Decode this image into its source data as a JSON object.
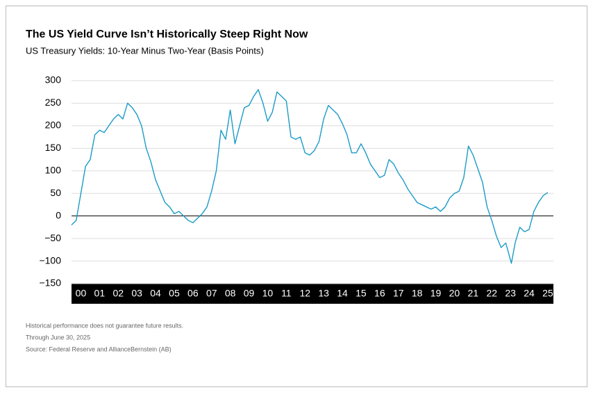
{
  "chart_data": {
    "type": "line",
    "title": "The US Yield Curve Isn’t Historically Steep Right Now",
    "subtitle": "US Treasury Yields: 10-Year Minus Two-Year (Basis Points)",
    "notes": [
      "Historical performance does not guarantee future results.",
      "Through June 30, 2025",
      "Source: Federal Reserve and AllianceBernstein (AB)"
    ],
    "xlim": [
      2000,
      2025.8
    ],
    "xticks": [
      {
        "value": 2000.5,
        "label": "00"
      },
      {
        "value": 2001.5,
        "label": "01"
      },
      {
        "value": 2002.5,
        "label": "02"
      },
      {
        "value": 2003.5,
        "label": "03"
      },
      {
        "value": 2004.5,
        "label": "04"
      },
      {
        "value": 2005.5,
        "label": "05"
      },
      {
        "value": 2006.5,
        "label": "06"
      },
      {
        "value": 2007.5,
        "label": "07"
      },
      {
        "value": 2008.5,
        "label": "08"
      },
      {
        "value": 2009.5,
        "label": "09"
      },
      {
        "value": 2010.5,
        "label": "10"
      },
      {
        "value": 2011.5,
        "label": "11"
      },
      {
        "value": 2012.5,
        "label": "12"
      },
      {
        "value": 2013.5,
        "label": "13"
      },
      {
        "value": 2014.5,
        "label": "14"
      },
      {
        "value": 2015.5,
        "label": "15"
      },
      {
        "value": 2016.5,
        "label": "16"
      },
      {
        "value": 2017.5,
        "label": "17"
      },
      {
        "value": 2018.5,
        "label": "18"
      },
      {
        "value": 2019.5,
        "label": "19"
      },
      {
        "value": 2020.5,
        "label": "20"
      },
      {
        "value": 2021.5,
        "label": "21"
      },
      {
        "value": 2022.5,
        "label": "22"
      },
      {
        "value": 2023.5,
        "label": "23"
      },
      {
        "value": 2024.5,
        "label": "24"
      },
      {
        "value": 2025.5,
        "label": "25"
      }
    ],
    "ylim": [
      -150,
      300
    ],
    "yticks": [
      {
        "value": -150,
        "label": "−150"
      },
      {
        "value": -100,
        "label": "−100"
      },
      {
        "value": -50,
        "label": "−50"
      },
      0,
      50,
      100,
      150,
      200,
      250,
      300
    ],
    "grid": true,
    "series": [
      {
        "color": "#1a9bc7",
        "x": [
          2000,
          2000.25,
          2000.5,
          2000.75,
          2001,
          2001.25,
          2001.5,
          2001.75,
          2002,
          2002.25,
          2002.5,
          2002.75,
          2003,
          2003.25,
          2003.5,
          2003.75,
          2004,
          2004.25,
          2004.5,
          2004.75,
          2005,
          2005.25,
          2005.5,
          2005.75,
          2006,
          2006.25,
          2006.5,
          2006.75,
          2007,
          2007.25,
          2007.5,
          2007.75,
          2008,
          2008.25,
          2008.5,
          2008.75,
          2009,
          2009.25,
          2009.5,
          2009.75,
          2010,
          2010.25,
          2010.5,
          2010.75,
          2011,
          2011.25,
          2011.5,
          2011.75,
          2012,
          2012.25,
          2012.5,
          2012.75,
          2013,
          2013.25,
          2013.5,
          2013.75,
          2014,
          2014.25,
          2014.5,
          2014.75,
          2015,
          2015.25,
          2015.5,
          2015.75,
          2016,
          2016.25,
          2016.5,
          2016.75,
          2017,
          2017.25,
          2017.5,
          2017.75,
          2018,
          2018.25,
          2018.5,
          2018.75,
          2019,
          2019.25,
          2019.5,
          2019.75,
          2020,
          2020.25,
          2020.5,
          2020.75,
          2021,
          2021.25,
          2021.5,
          2021.75,
          2022,
          2022.25,
          2022.5,
          2022.75,
          2023,
          2023.25,
          2023.55,
          2023.75,
          2024,
          2024.25,
          2024.5,
          2024.75,
          2025,
          2025.25,
          2025.5
        ],
        "values": [
          -20,
          -10,
          50,
          110,
          125,
          180,
          190,
          185,
          200,
          215,
          225,
          215,
          250,
          240,
          225,
          200,
          150,
          120,
          80,
          55,
          30,
          20,
          5,
          10,
          0,
          -10,
          -15,
          -5,
          5,
          20,
          55,
          100,
          190,
          170,
          235,
          160,
          200,
          240,
          245,
          265,
          280,
          250,
          210,
          230,
          275,
          265,
          255,
          175,
          170,
          175,
          140,
          135,
          145,
          165,
          215,
          245,
          235,
          225,
          205,
          180,
          140,
          140,
          160,
          140,
          115,
          100,
          85,
          90,
          125,
          115,
          95,
          80,
          60,
          45,
          30,
          25,
          20,
          15,
          20,
          10,
          20,
          40,
          50,
          55,
          85,
          155,
          135,
          105,
          75,
          20,
          -10,
          -45,
          -70,
          -60,
          -105,
          -60,
          -25,
          -35,
          -30,
          10,
          30,
          45,
          52
        ]
      }
    ]
  }
}
